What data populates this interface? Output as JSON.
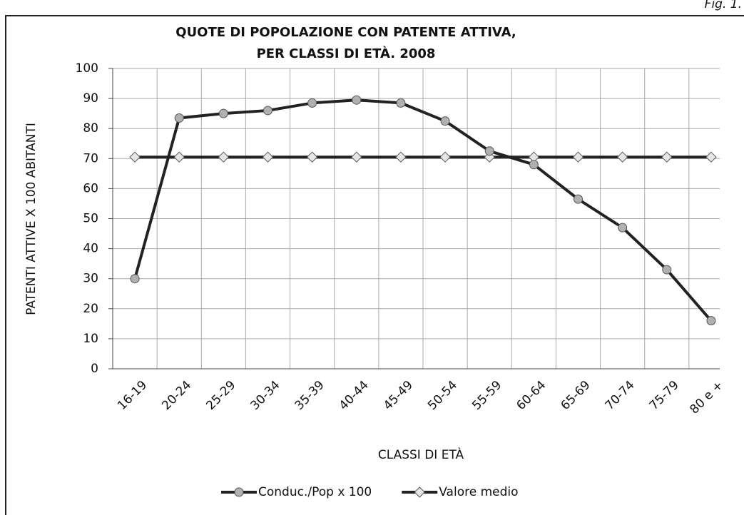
{
  "chart_data": {
    "type": "line",
    "fig_label": "Fig. 1.",
    "title": [
      "QUOTE DI POPOLAZIONE CON PATENTE ATTIVA,",
      "PER CLASSI DI ETÀ. 2008"
    ],
    "x_label": "CLASSI DI ETÀ",
    "y_label": "PATENTI ATTIVE X 100 ABITANTI",
    "categories": [
      "16-19",
      "20-24",
      "25-29",
      "30-34",
      "35-39",
      "40-44",
      "45-49",
      "50-54",
      "55-59",
      "60-64",
      "65-69",
      "70-74",
      "75-79",
      "80 e +"
    ],
    "series": [
      {
        "name": "Conduc./Pop x 100",
        "color": "#222222",
        "marker": "circle",
        "values": [
          30,
          83.5,
          85,
          86,
          88.5,
          89.5,
          88.5,
          82.5,
          72.5,
          68,
          56.5,
          47,
          33,
          16
        ]
      },
      {
        "name": "Valore medio",
        "color": "#222222",
        "marker": "diamond",
        "values": [
          70.5,
          70.5,
          70.5,
          70.5,
          70.5,
          70.5,
          70.5,
          70.5,
          70.5,
          70.5,
          70.5,
          70.5,
          70.5,
          70.5
        ]
      }
    ],
    "ylim": [
      0,
      100
    ],
    "yticks": [
      0,
      10,
      20,
      30,
      40,
      50,
      60,
      70,
      80,
      90,
      100
    ],
    "grid": true
  }
}
